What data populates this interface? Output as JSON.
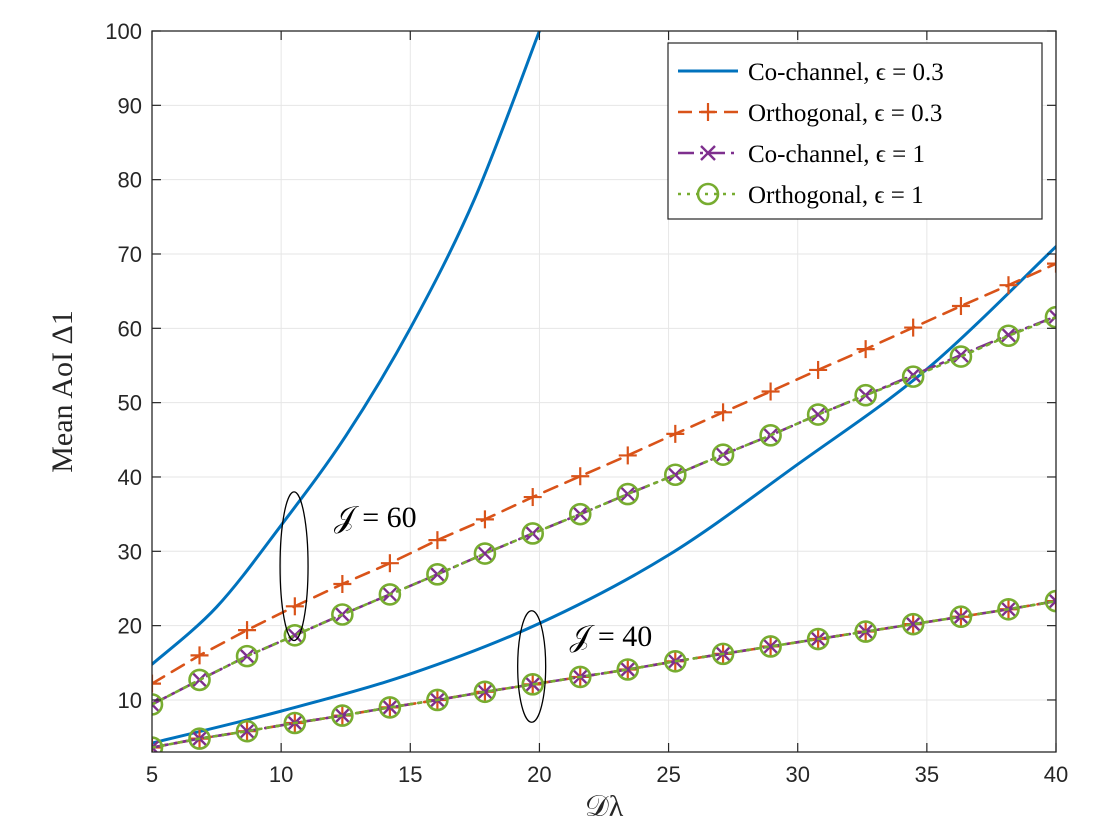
{
  "chart_data": {
    "type": "line",
    "xlabel": "𝒟λ",
    "ylabel": "Mean AoI Δ1",
    "xlim": [
      5,
      40
    ],
    "ylim": [
      3,
      100
    ],
    "xticks": [
      "5",
      "10",
      "15",
      "20",
      "25",
      "30",
      "35",
      "40"
    ],
    "yticks": [
      "10",
      "20",
      "30",
      "40",
      "50",
      "60",
      "70",
      "80",
      "90",
      "100"
    ],
    "grid": true,
    "legend_position": "top-right",
    "colors": {
      "co_channel_03": "#0072bd",
      "orthogonal_03": "#d95319",
      "co_channel_1": "#7e2f8e",
      "orthogonal_1": "#77ac30"
    },
    "legend": [
      {
        "label": "Co-channel, ϵ = 0.3",
        "style": "solid",
        "marker": "none",
        "color_key": "co_channel_03"
      },
      {
        "label": "Orthogonal, ϵ = 0.3",
        "style": "dashed",
        "marker": "plus",
        "color_key": "orthogonal_03"
      },
      {
        "label": "Co-channel, ϵ = 1",
        "style": "dashdot",
        "marker": "x",
        "color_key": "co_channel_1"
      },
      {
        "label": "Orthogonal, ϵ = 1",
        "style": "dotted",
        "marker": "circle",
        "color_key": "orthogonal_1"
      }
    ],
    "x": [
      5,
      6.84,
      8.68,
      10.53,
      12.37,
      14.21,
      16.05,
      17.89,
      19.74,
      21.58,
      23.42,
      25.26,
      27.11,
      28.95,
      30.79,
      32.63,
      34.47,
      36.32,
      38.16,
      40
    ],
    "series": [
      {
        "name": "Co-channel, ϵ = 0.3 (𝒥 = 60)",
        "color_key": "co_channel_03",
        "style": "solid",
        "marker": "none",
        "x": [
          5,
          7.5,
          10,
          12.5,
          15,
          17.5,
          20
        ],
        "values": [
          14.8,
          22.5,
          33.5,
          45.5,
          60,
          77.5,
          100
        ]
      },
      {
        "name": "Co-channel, ϵ = 0.3 (𝒥 = 40)",
        "color_key": "co_channel_03",
        "style": "solid",
        "marker": "none",
        "x": [
          5,
          10,
          15,
          20,
          25,
          30,
          35,
          40
        ],
        "values": [
          4.2,
          8.5,
          13.5,
          20.3,
          29.5,
          41.7,
          54.5,
          71
        ]
      },
      {
        "name": "Orthogonal, ϵ = 0.3 (𝒥 = 60)",
        "color_key": "orthogonal_03",
        "style": "dashed",
        "marker": "plus",
        "values": [
          12.2,
          16.0,
          19.4,
          22.6,
          25.6,
          28.4,
          31.5,
          34.3,
          37.3,
          40.1,
          42.9,
          45.8,
          48.7,
          51.5,
          54.4,
          57.2,
          60.1,
          63.0,
          65.8,
          68.7
        ]
      },
      {
        "name": "Co-channel, ϵ = 1 (𝒥 = 60)",
        "color_key": "co_channel_1",
        "style": "dashdot",
        "marker": "x",
        "values": [
          9.4,
          12.7,
          15.9,
          18.7,
          21.5,
          24.2,
          26.9,
          29.7,
          32.4,
          35.0,
          37.7,
          40.3,
          43.0,
          45.6,
          48.4,
          51.0,
          53.7,
          56.4,
          59.1,
          61.6
        ]
      },
      {
        "name": "Orthogonal, ϵ = 1 (𝒥 = 60)",
        "color_key": "orthogonal_1",
        "style": "dotted",
        "marker": "circle",
        "values": [
          9.4,
          12.7,
          15.9,
          18.7,
          21.5,
          24.2,
          26.9,
          29.7,
          32.4,
          35.0,
          37.7,
          40.3,
          43.0,
          45.6,
          48.4,
          51.0,
          53.5,
          56.2,
          59.0,
          61.5
        ]
      },
      {
        "name": "Orthogonal, ϵ = 0.3 (𝒥 = 40)",
        "color_key": "orthogonal_03",
        "style": "dashed",
        "marker": "plus",
        "values": [
          3.6,
          4.8,
          5.8,
          6.9,
          7.9,
          9.0,
          10.0,
          11.1,
          12.1,
          13.1,
          14.1,
          15.2,
          16.2,
          17.2,
          18.2,
          19.2,
          20.2,
          21.2,
          22.2,
          23.3
        ]
      },
      {
        "name": "Co-channel, ϵ = 1 (𝒥 = 40)",
        "color_key": "co_channel_1",
        "style": "dashdot",
        "marker": "x",
        "values": [
          3.6,
          4.8,
          5.8,
          6.9,
          7.9,
          9.0,
          10.0,
          11.1,
          12.1,
          13.1,
          14.1,
          15.2,
          16.2,
          17.2,
          18.2,
          19.2,
          20.2,
          21.2,
          22.2,
          23.3
        ]
      },
      {
        "name": "Orthogonal, ϵ = 1 (𝒥 = 40)",
        "color_key": "orthogonal_1",
        "style": "dotted",
        "marker": "circle",
        "values": [
          3.6,
          4.8,
          5.8,
          6.9,
          7.9,
          9.0,
          10.0,
          11.1,
          12.1,
          13.1,
          14.1,
          15.2,
          16.2,
          17.2,
          18.2,
          19.2,
          20.2,
          21.2,
          22.2,
          23.3
        ]
      }
    ],
    "annotations": [
      {
        "text": "𝒥 = 60",
        "group_x": 10.5,
        "group_y_range": [
          18,
          38
        ]
      },
      {
        "text": "𝒥 = 40",
        "group_x": 19.7,
        "group_y_range": [
          7,
          22
        ]
      }
    ]
  }
}
